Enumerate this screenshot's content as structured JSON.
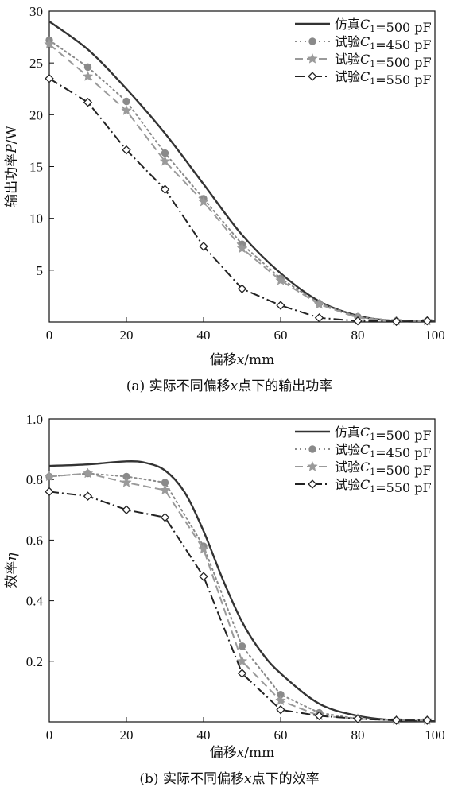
{
  "chart_data": [
    {
      "type": "line",
      "caption": "(a) 实际不同偏移x点下的输出功率",
      "xlabel": "偏移x/mm",
      "ylabel": "输出功率P/W",
      "xlim": [
        0,
        100
      ],
      "ylim": [
        0,
        30
      ],
      "xticks": [
        0,
        20,
        40,
        60,
        80,
        100
      ],
      "yticks": [
        5,
        10,
        15,
        20,
        25,
        30
      ],
      "grid": false,
      "legend_position": "top-right",
      "series": [
        {
          "name": "仿真C1=500 pF",
          "style": "solid",
          "color": "#333333",
          "marker": "none",
          "x": [
            0,
            10,
            20,
            30,
            40,
            50,
            60,
            70,
            80,
            90,
            100
          ],
          "y": [
            29.0,
            26.3,
            22.5,
            18.2,
            13.3,
            8.4,
            4.7,
            2.0,
            0.6,
            0.1,
            0.05
          ]
        },
        {
          "name": "试验C1=450 pF",
          "style": "dotted",
          "color": "#8a8a8a",
          "marker": "circle",
          "x": [
            0,
            10,
            20,
            30,
            40,
            50,
            60,
            70,
            80,
            90,
            98
          ],
          "y": [
            27.2,
            24.6,
            21.3,
            16.3,
            11.9,
            7.5,
            4.2,
            1.8,
            0.5,
            0.1,
            0.1
          ]
        },
        {
          "name": "试验C1=500 pF",
          "style": "dashed",
          "color": "#9a9a9a",
          "marker": "star",
          "x": [
            0,
            10,
            20,
            30,
            40,
            50,
            60,
            70,
            80,
            90,
            98
          ],
          "y": [
            26.8,
            23.7,
            20.4,
            15.5,
            11.6,
            7.1,
            4.0,
            1.7,
            0.4,
            0.1,
            0.1
          ]
        },
        {
          "name": "试验C1=550 pF",
          "style": "dashdot",
          "color": "#222222",
          "marker": "diamond",
          "x": [
            0,
            10,
            20,
            30,
            40,
            50,
            60,
            70,
            80,
            90,
            98
          ],
          "y": [
            23.5,
            21.2,
            16.6,
            12.8,
            7.3,
            3.2,
            1.6,
            0.4,
            0.1,
            0.05,
            0.1
          ]
        }
      ]
    },
    {
      "type": "line",
      "caption": "(b) 实际不同偏移x点下的效率",
      "xlabel": "偏移x/mm",
      "ylabel": "效率η",
      "xlim": [
        0,
        100
      ],
      "ylim": [
        0,
        1.0
      ],
      "xticks": [
        0,
        20,
        40,
        60,
        80,
        100
      ],
      "yticks": [
        0.2,
        0.4,
        0.6,
        0.8,
        1.0
      ],
      "ytick_labels": [
        "0.2",
        "0.4",
        "0.6",
        "0.8",
        "1.0"
      ],
      "grid": false,
      "legend_position": "top-right",
      "series": [
        {
          "name": "仿真C1=500 pF",
          "style": "solid",
          "color": "#333333",
          "marker": "none",
          "x": [
            0,
            10,
            20,
            25,
            30,
            35,
            40,
            45,
            50,
            55,
            60,
            70,
            80,
            90,
            100
          ],
          "y": [
            0.845,
            0.85,
            0.86,
            0.855,
            0.83,
            0.76,
            0.63,
            0.47,
            0.33,
            0.23,
            0.16,
            0.06,
            0.02,
            0.005,
            0.002
          ]
        },
        {
          "name": "试验C1=450 pF",
          "style": "dotted",
          "color": "#8a8a8a",
          "marker": "circle",
          "x": [
            0,
            10,
            20,
            30,
            40,
            50,
            60,
            70,
            80,
            90,
            98
          ],
          "y": [
            0.81,
            0.82,
            0.81,
            0.79,
            0.58,
            0.25,
            0.09,
            0.03,
            0.01,
            0.005,
            0.005
          ]
        },
        {
          "name": "试验C1=500 pF",
          "style": "dashed",
          "color": "#9a9a9a",
          "marker": "star",
          "x": [
            0,
            10,
            20,
            30,
            40,
            50,
            60,
            70,
            80,
            90,
            98
          ],
          "y": [
            0.81,
            0.82,
            0.79,
            0.765,
            0.57,
            0.2,
            0.07,
            0.02,
            0.01,
            0.005,
            0.005
          ]
        },
        {
          "name": "试验C1=550 pF",
          "style": "dashdot",
          "color": "#222222",
          "marker": "diamond",
          "x": [
            0,
            10,
            20,
            30,
            40,
            50,
            60,
            70,
            80,
            90,
            98
          ],
          "y": [
            0.76,
            0.745,
            0.7,
            0.675,
            0.48,
            0.16,
            0.04,
            0.02,
            0.01,
            0.005,
            0.005
          ]
        }
      ]
    }
  ]
}
